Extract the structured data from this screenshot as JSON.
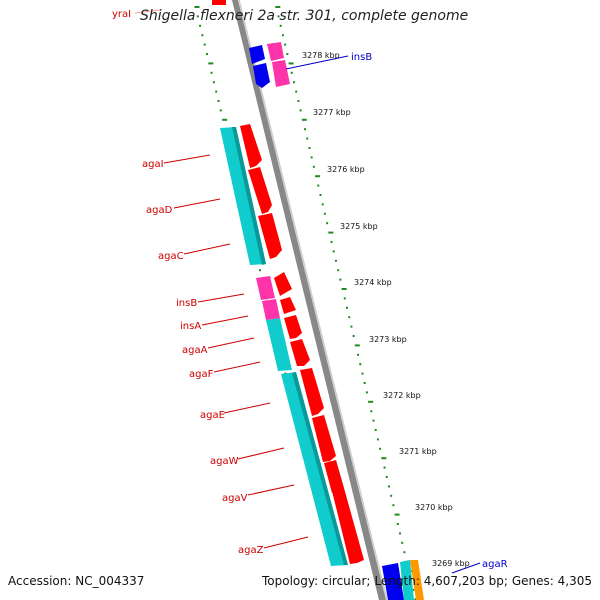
{
  "title": "Shigella flexneri 2a str. 301, complete genome",
  "footer": {
    "accession_label": "Accession: NC_004337",
    "topology_label": "Topology: circular;",
    "length_label": "Length: 4,607,203 bp;",
    "genes_label": "Genes: 4,305"
  },
  "colors": {
    "forward_gene": "#ff0000",
    "reverse_gene": "#00cccc",
    "insertion_gene": "#ff33aa",
    "blue_gene": "#0000ee",
    "tick": "#228822",
    "backbone": "#888888",
    "label_red": "#cc0000",
    "label_blue": "#0000cc"
  },
  "kbp_ticks": [
    {
      "label": "3278 kbp"
    },
    {
      "label": "3277 kbp"
    },
    {
      "label": "3276 kbp"
    },
    {
      "label": "3275 kbp"
    },
    {
      "label": "3274 kbp"
    },
    {
      "label": "3273 kbp"
    },
    {
      "label": "3272 kbp"
    },
    {
      "label": "3271 kbp"
    },
    {
      "label": "3270 kbp"
    },
    {
      "label": "3269 kbp"
    }
  ],
  "gene_labels_left": [
    {
      "name": "yraI",
      "color": "red"
    },
    {
      "name": "agaI",
      "color": "red"
    },
    {
      "name": "agaD",
      "color": "red"
    },
    {
      "name": "agaC",
      "color": "red"
    },
    {
      "name": "insB",
      "color": "red"
    },
    {
      "name": "insA",
      "color": "red"
    },
    {
      "name": "agaA",
      "color": "red"
    },
    {
      "name": "agaF",
      "color": "red"
    },
    {
      "name": "agaE",
      "color": "red"
    },
    {
      "name": "agaW",
      "color": "red"
    },
    {
      "name": "agaV",
      "color": "red"
    },
    {
      "name": "agaZ",
      "color": "red"
    }
  ],
  "gene_labels_right": [
    {
      "name": "insB",
      "color": "blue"
    },
    {
      "name": "agaR",
      "color": "blue"
    }
  ]
}
